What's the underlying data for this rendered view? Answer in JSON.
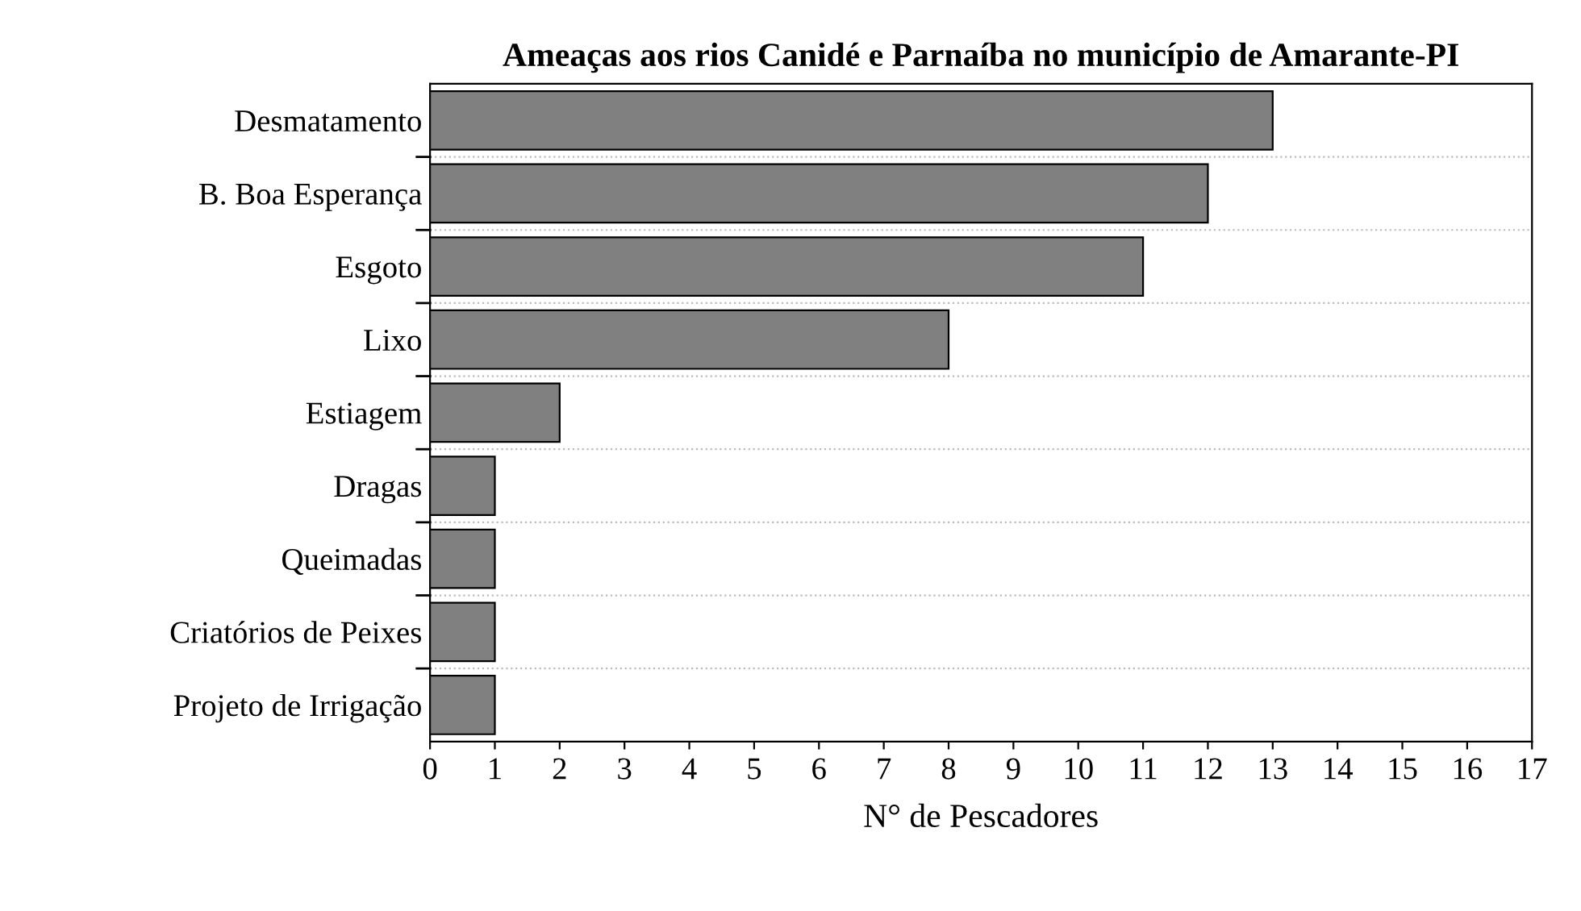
{
  "chart_data": {
    "type": "bar",
    "orientation": "horizontal",
    "title": "Ameaças aos rios Canidé e Parnaíba no município de Amarante-PI",
    "xlabel": "N° de Pescadores",
    "categories": [
      "Desmatamento",
      "B. Boa Esperança",
      "Esgoto",
      "Lixo",
      "Estiagem",
      "Dragas",
      "Queimadas",
      "Criatórios de Peixes",
      "Projeto de Irrigação"
    ],
    "values": [
      13,
      12,
      11,
      8,
      2,
      1,
      1,
      1,
      1
    ],
    "color": "#808080",
    "xlim": [
      0,
      17
    ],
    "xticks": [
      0,
      1,
      2,
      3,
      4,
      5,
      6,
      7,
      8,
      9,
      10,
      11,
      12,
      13,
      14,
      15,
      16,
      17
    ],
    "grid": "y",
    "legend": false
  }
}
